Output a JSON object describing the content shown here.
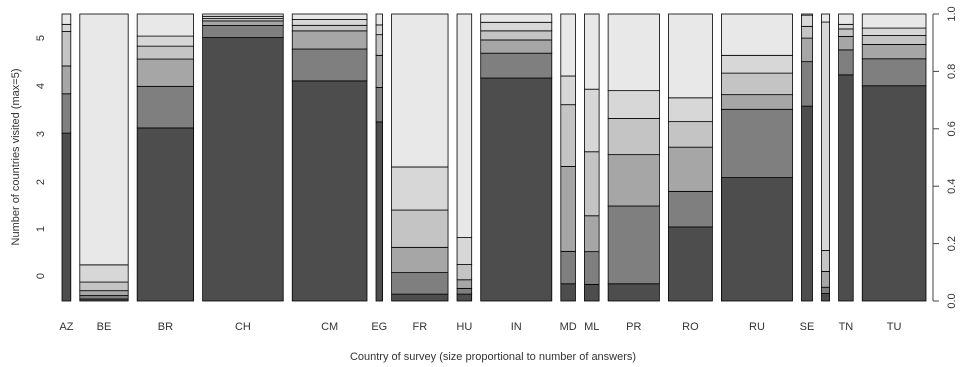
{
  "chart_data": {
    "type": "bar",
    "subtype": "spineplot",
    "xlabel": "Country of survey (size proportional to number of answers)",
    "ylabel": "Number of countries visited (max=5)",
    "categories": [
      "AZ",
      "BE",
      "BR",
      "CH",
      "CM",
      "EG",
      "FR",
      "HU",
      "IN",
      "MD",
      "ML",
      "PR",
      "RO",
      "RU",
      "SE",
      "",
      "TN",
      "TU"
    ],
    "levels": [
      "0",
      "1",
      "2",
      "3",
      "4",
      "5"
    ],
    "level_colors": [
      "#4d4d4d",
      "#7f7f7f",
      "#a6a6a6",
      "#c4c4c4",
      "#d7d7d7",
      "#e8e8e8"
    ],
    "width_proportion": [
      0.012,
      0.066,
      0.077,
      0.11,
      0.102,
      0.009,
      0.077,
      0.02,
      0.097,
      0.02,
      0.02,
      0.07,
      0.06,
      0.097,
      0.015,
      0.011,
      0.02,
      0.087
    ],
    "level_shares": [
      [
        0.585,
        0.137,
        0.097,
        0.12,
        0.025,
        0.036
      ],
      [
        0.007,
        0.012,
        0.017,
        0.03,
        0.06,
        0.874
      ],
      [
        0.603,
        0.145,
        0.095,
        0.045,
        0.035,
        0.077
      ],
      [
        0.918,
        0.042,
        0.016,
        0.008,
        0.008,
        0.008
      ],
      [
        0.836,
        0.121,
        0.069,
        0.021,
        0.022,
        0.021
      ],
      [
        0.624,
        0.12,
        0.112,
        0.072,
        0.034,
        0.038
      ],
      [
        0.024,
        0.075,
        0.088,
        0.13,
        0.15,
        0.533
      ],
      [
        0.024,
        0.02,
        0.03,
        0.053,
        0.094,
        0.779
      ],
      [
        0.808,
        0.09,
        0.048,
        0.033,
        0.031,
        0.03
      ],
      [
        0.06,
        0.113,
        0.296,
        0.215,
        0.1,
        0.216
      ],
      [
        0.058,
        0.114,
        0.125,
        0.223,
        0.218,
        0.262
      ],
      [
        0.06,
        0.271,
        0.179,
        0.126,
        0.097,
        0.267
      ],
      [
        0.258,
        0.124,
        0.154,
        0.089,
        0.083,
        0.292
      ],
      [
        0.43,
        0.238,
        0.051,
        0.075,
        0.062,
        0.144
      ],
      [
        0.679,
        0.155,
        0.082,
        0.041,
        0.039,
        0.004
      ],
      [
        0.026,
        0.022,
        0.055,
        0.073,
        0.796,
        0.028
      ],
      [
        0.788,
        0.087,
        0.047,
        0.026,
        0.016,
        0.036
      ],
      [
        0.75,
        0.094,
        0.05,
        0.031,
        0.026,
        0.049
      ]
    ],
    "y_left": {
      "ticks": [
        "0",
        "1",
        "2",
        "3",
        "4",
        "5"
      ]
    },
    "y_right": {
      "ticks": [
        "0.0",
        "0.2",
        "0.4",
        "0.6",
        "0.8",
        "1.0"
      ],
      "range": [
        0,
        1
      ]
    },
    "grid": false,
    "legend": "none"
  }
}
